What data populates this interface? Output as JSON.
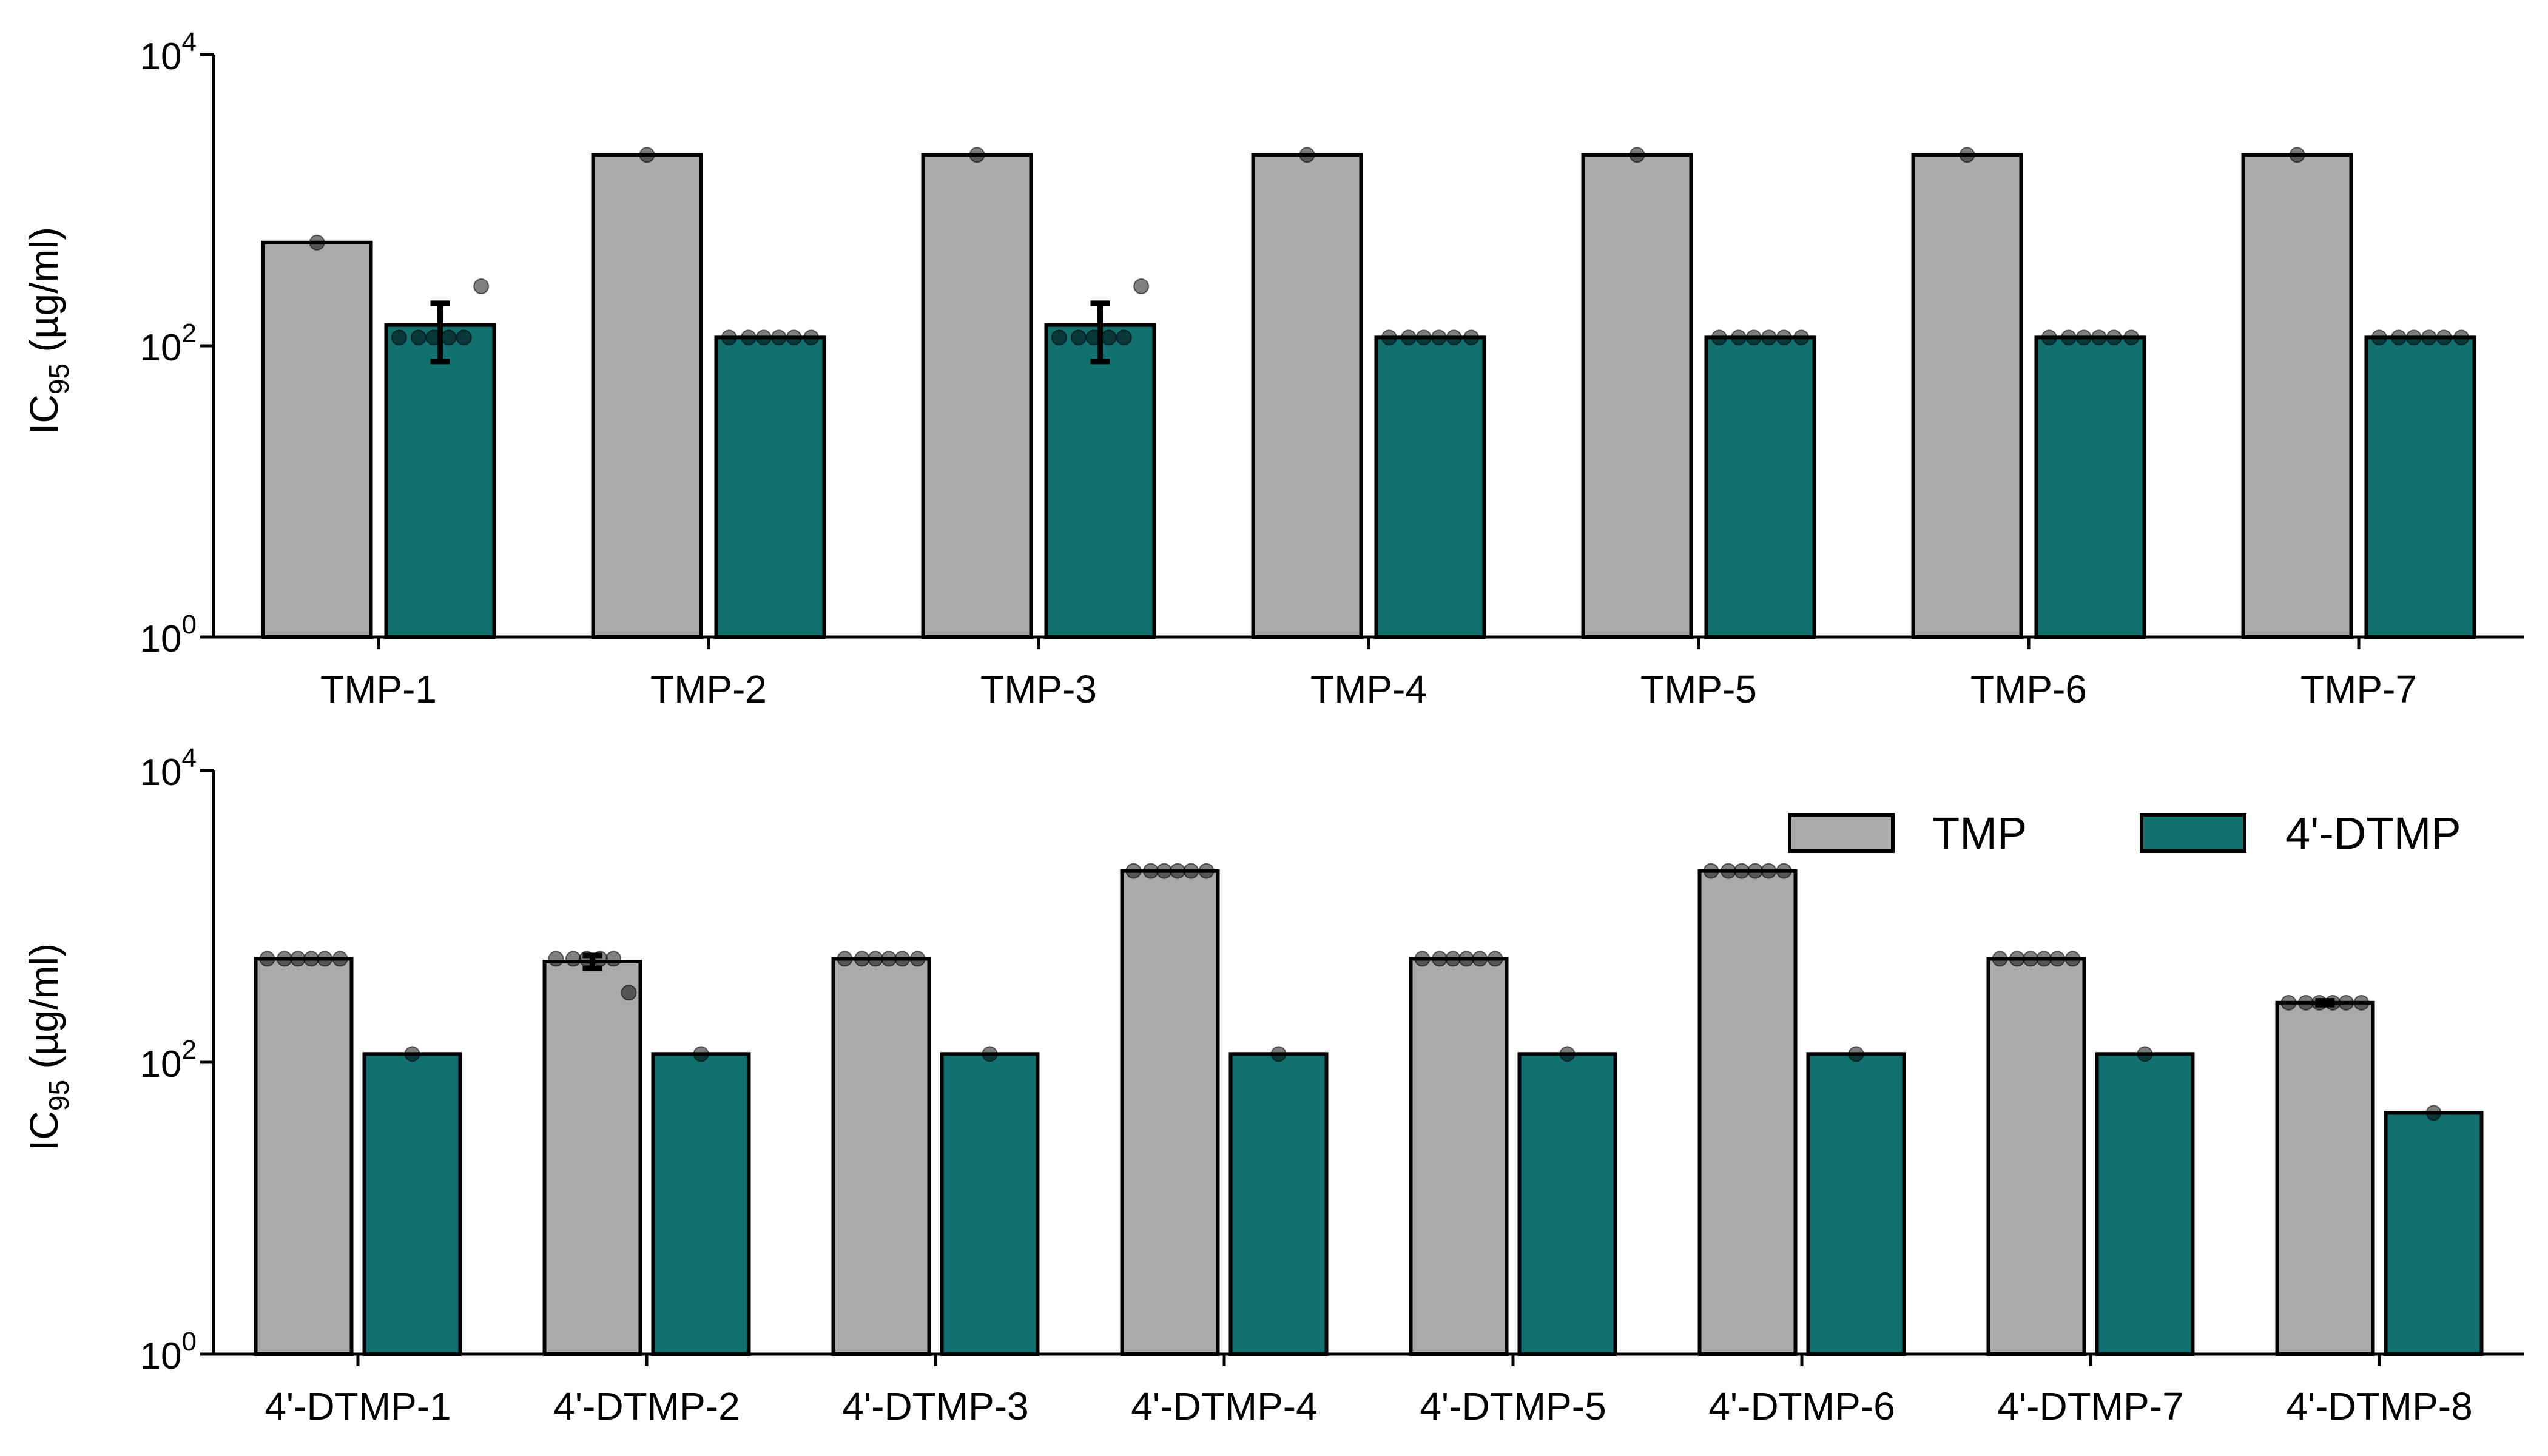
{
  "chart_data": [
    {
      "type": "bar",
      "yscale": "log",
      "ylim": [
        1,
        10000
      ],
      "ylabel_main": "IC",
      "ylabel_sub": "95",
      "ylabel_rest": " (µg/ml)",
      "yticks": [
        {
          "value": 1,
          "base": "10",
          "exp": "0"
        },
        {
          "value": 100,
          "base": "10",
          "exp": "2"
        },
        {
          "value": 10000,
          "base": "10",
          "exp": "4"
        }
      ],
      "categories": [
        "TMP-1",
        "TMP-2",
        "TMP-3",
        "TMP-4",
        "TMP-5",
        "TMP-6",
        "TMP-7"
      ],
      "series": [
        {
          "name": "TMP",
          "color": "#aaaaaa",
          "values": [
            512,
            2048,
            2048,
            2048,
            2048,
            2048,
            2048
          ],
          "error": [
            null,
            null,
            null,
            null,
            null,
            null,
            null
          ],
          "points": [
            [
              512
            ],
            [
              2048
            ],
            [
              2048
            ],
            [
              2048
            ],
            [
              2048
            ],
            [
              2048
            ],
            [
              2048
            ]
          ]
        },
        {
          "name": "4'-DTMP",
          "color": "#10716e",
          "values": [
            139,
            114,
            139,
            114,
            114,
            114,
            114
          ],
          "error": [
            [
              78,
              196
            ],
            null,
            [
              78,
              196
            ],
            null,
            null,
            null,
            null
          ],
          "points": [
            [
              114,
              114,
              114,
              114,
              114,
              256
            ],
            [
              114,
              114,
              114,
              114,
              114,
              114
            ],
            [
              114,
              114,
              114,
              114,
              114,
              256
            ],
            [
              114,
              114,
              114,
              114,
              114,
              114
            ],
            [
              114,
              114,
              114,
              114,
              114,
              114
            ],
            [
              114,
              114,
              114,
              114,
              114,
              114
            ],
            [
              114,
              114,
              114,
              114,
              114,
              114
            ]
          ]
        }
      ],
      "legend": "none"
    },
    {
      "type": "bar",
      "yscale": "log",
      "ylim": [
        1,
        10000
      ],
      "ylabel_main": "IC",
      "ylabel_sub": "95",
      "ylabel_rest": " (µg/ml)",
      "yticks": [
        {
          "value": 1,
          "base": "10",
          "exp": "0"
        },
        {
          "value": 100,
          "base": "10",
          "exp": "2"
        },
        {
          "value": 10000,
          "base": "10",
          "exp": "4"
        }
      ],
      "categories": [
        "4'-DTMP-1",
        "4'-DTMP-2",
        "4'-DTMP-3",
        "4'-DTMP-4",
        "4'-DTMP-5",
        "4'-DTMP-6",
        "4'-DTMP-7",
        "4'-DTMP-8"
      ],
      "series": [
        {
          "name": "TMP",
          "color": "#aaaaaa",
          "values": [
            512,
            490,
            512,
            2048,
            512,
            2048,
            512,
            256
          ],
          "error": [
            null,
            [
              440,
              540
            ],
            null,
            null,
            null,
            null,
            null,
            [
              248,
              264
            ]
          ],
          "points": [
            [
              512,
              512,
              512,
              512,
              512,
              512
            ],
            [
              512,
              512,
              512,
              512,
              512,
              300
            ],
            [
              512,
              512,
              512,
              512,
              512,
              512
            ],
            [
              2048,
              2048,
              2048,
              2048,
              2048,
              2048
            ],
            [
              512,
              512,
              512,
              512,
              512,
              512
            ],
            [
              2048,
              2048,
              2048,
              2048,
              2048,
              2048
            ],
            [
              512,
              512,
              512,
              512,
              512,
              512
            ],
            [
              256,
              256,
              256,
              256,
              256,
              256
            ]
          ]
        },
        {
          "name": "4'-DTMP",
          "color": "#10716e",
          "values": [
            114,
            114,
            114,
            114,
            114,
            114,
            114,
            45
          ],
          "error": [
            null,
            null,
            null,
            null,
            null,
            null,
            null,
            null
          ],
          "points": [
            [
              114
            ],
            [
              114
            ],
            [
              114
            ],
            [
              114
            ],
            [
              114
            ],
            [
              114
            ],
            [
              114
            ],
            [
              45
            ]
          ]
        }
      ],
      "legend": "top-right"
    }
  ]
}
